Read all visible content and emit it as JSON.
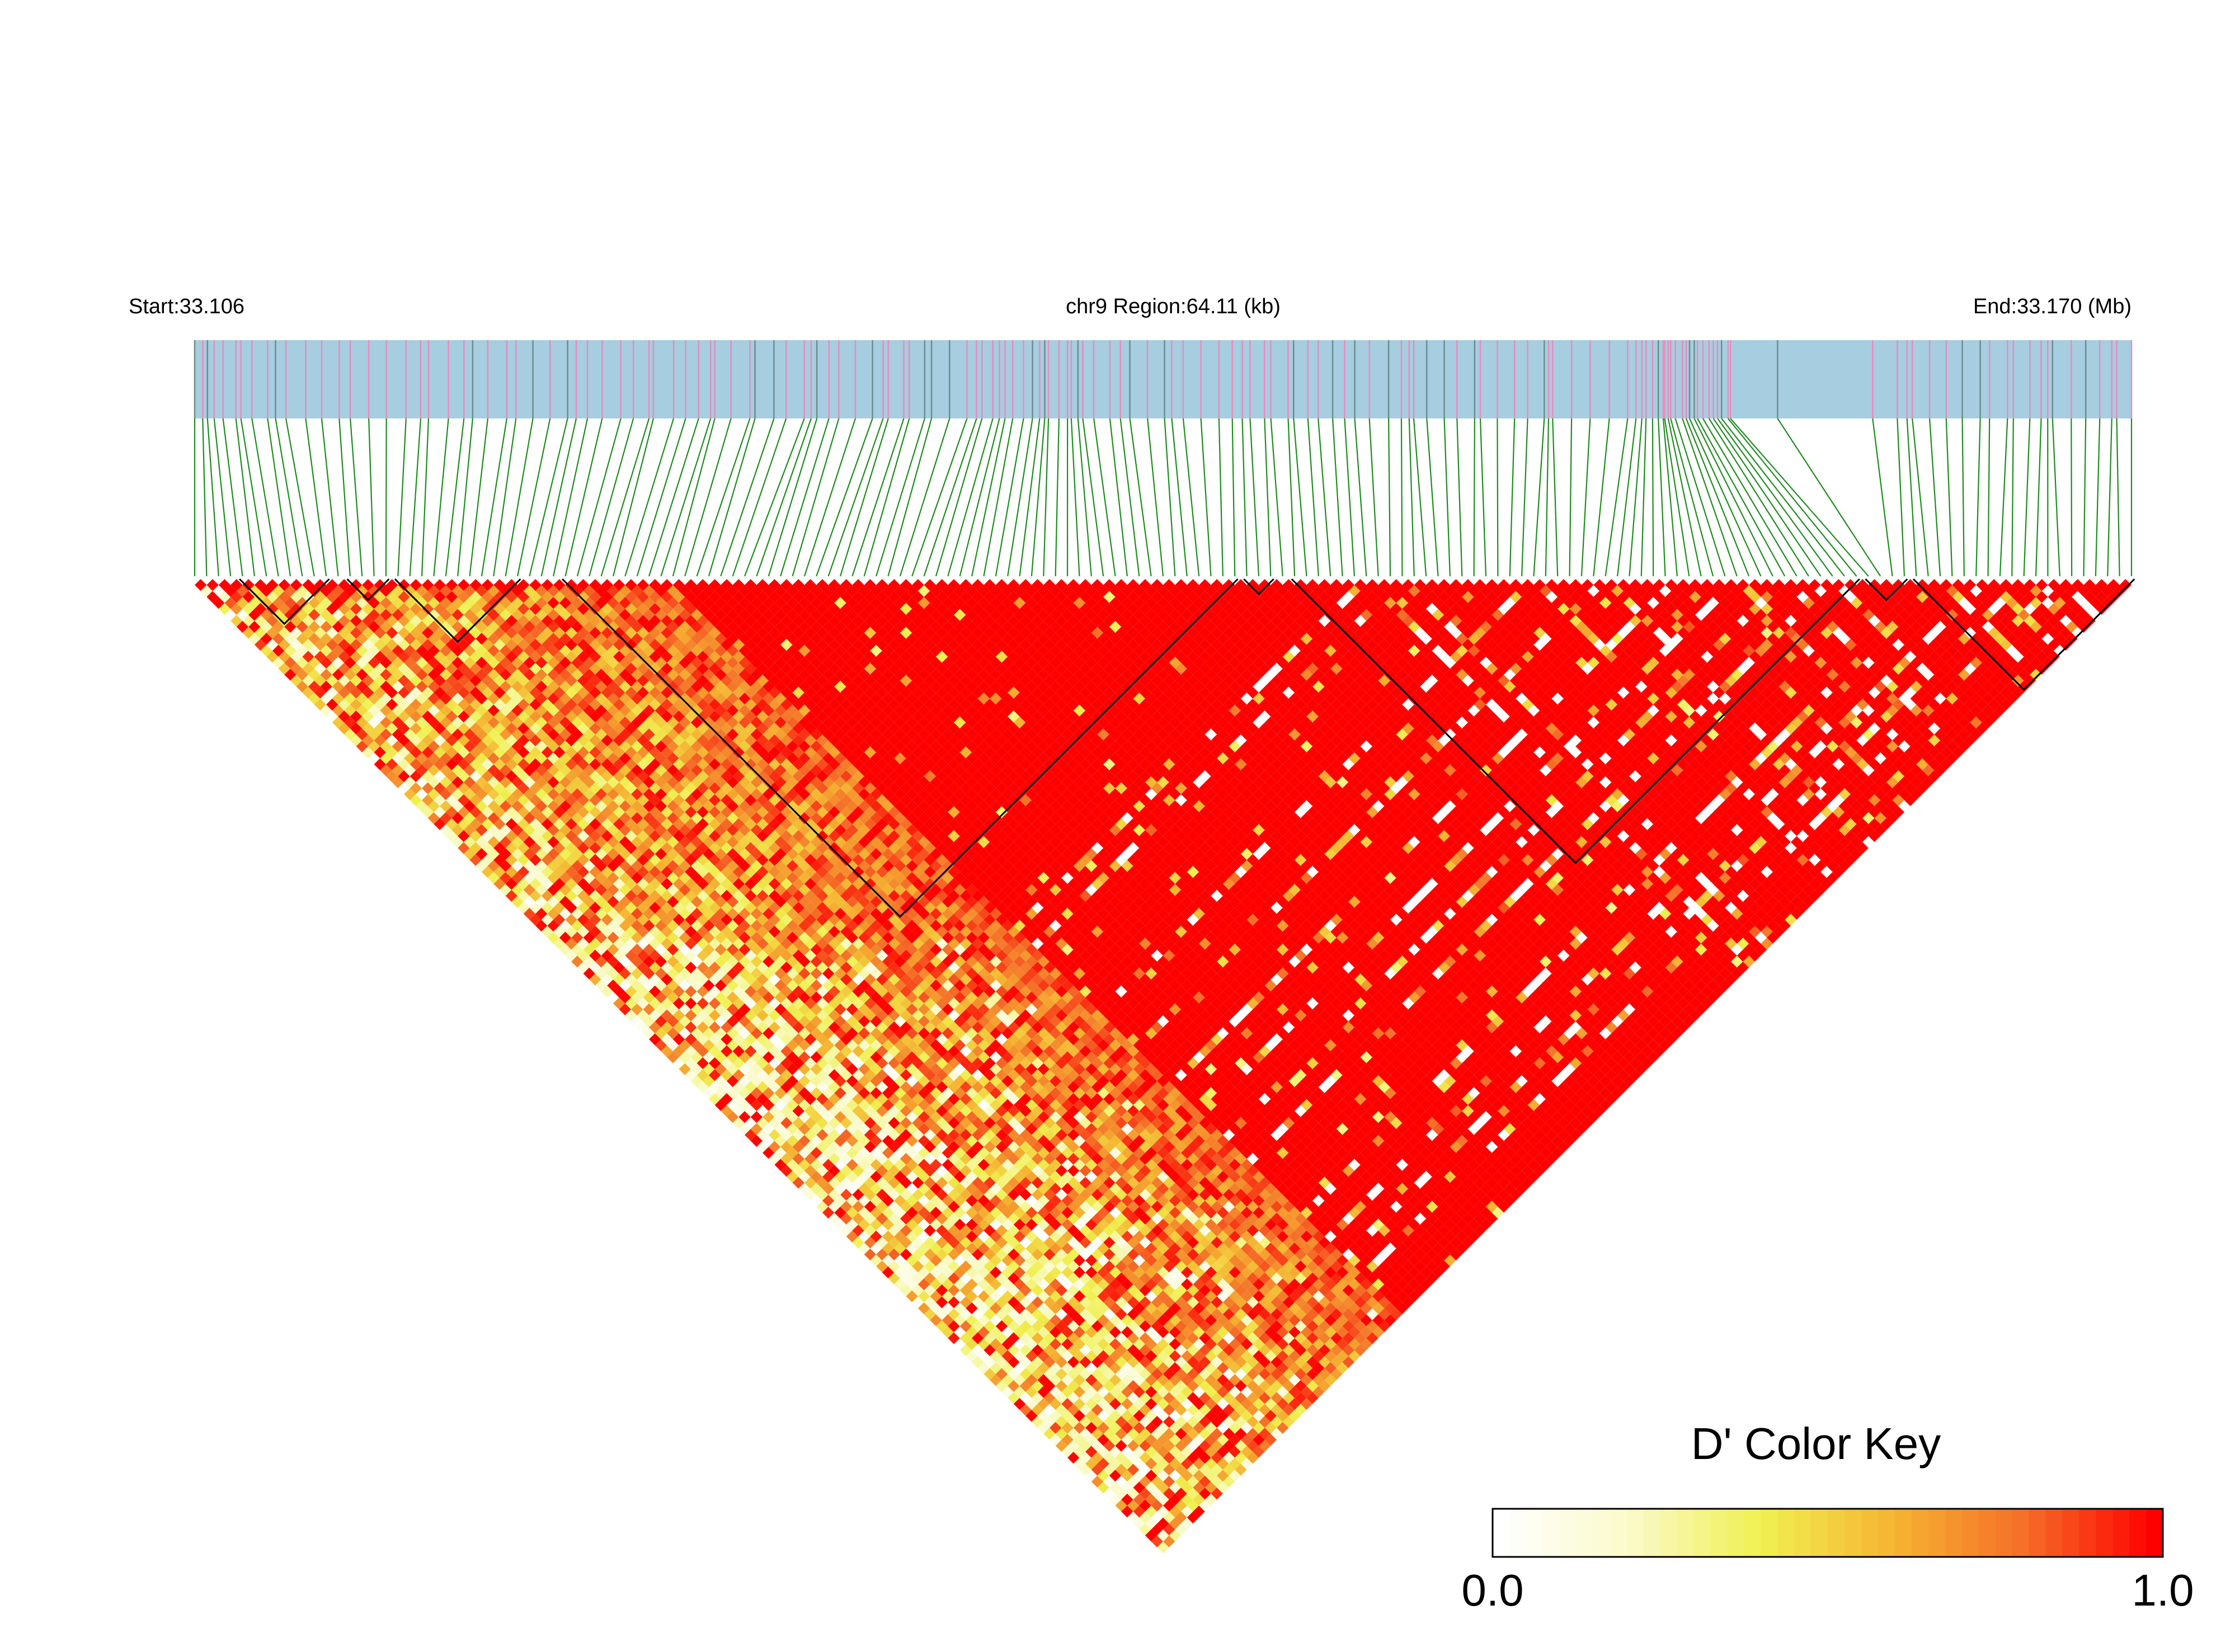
{
  "chart_data": {
    "type": "heatmap",
    "subtype": "linkage-disequilibrium triangle",
    "header": {
      "start_label": "Start:33.106",
      "region_label": "chr9 Region:64.11 (kb)",
      "end_label": "End:33.170 (Mb)"
    },
    "region": {
      "chrom": "chr9",
      "start_mb": 33.106,
      "end_mb": 33.17,
      "length_kb": 64.11
    },
    "snp_count": 163,
    "color_key": {
      "title": "D' Color Key",
      "min_label": "0.0",
      "max_label": "1.0",
      "range": [
        0,
        1
      ],
      "stops": [
        "#ffffff",
        "#fafac8",
        "#f0f050",
        "#f5b432",
        "#f56e28",
        "#ff0000"
      ]
    },
    "blocks_snp_ranges": [
      [
        4,
        11
      ],
      [
        13,
        16
      ],
      [
        17,
        27
      ],
      [
        31,
        87
      ],
      [
        88,
        90
      ],
      [
        92,
        139
      ],
      [
        140,
        143
      ],
      [
        144,
        162
      ]
    ],
    "colors": {
      "gene_track": "#a6cde0",
      "snp_tick_pink": "#e68cbe",
      "snp_tick_gray": "#6e8c8c",
      "connector": "#1e8c1e",
      "block_outline": "#000000",
      "ld_high": "#ff0000"
    }
  }
}
